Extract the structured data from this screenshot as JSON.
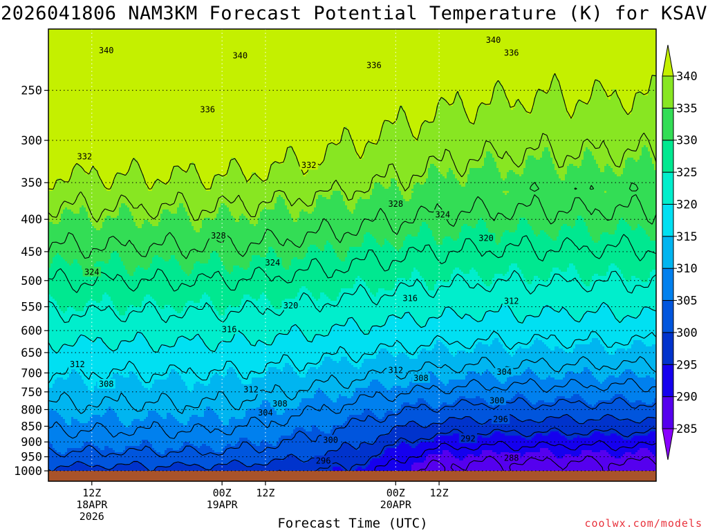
{
  "title": "2026041806 NAM3KM Forecast Potential Temperature (K) for KSAV",
  "credit": "coolwx.com/models",
  "chart_data": {
    "type": "heatmap",
    "title": "2026041806 NAM3KM Forecast Potential Temperature (K) for KSAV",
    "xlabel": "Forecast Time (UTC)",
    "ylabel": "",
    "yaxis": {
      "scale": "log-pressure",
      "inverted": true,
      "ticks": [
        250,
        300,
        350,
        400,
        450,
        500,
        550,
        600,
        650,
        700,
        750,
        800,
        850,
        900,
        950,
        1000
      ],
      "ylim": [
        1000,
        200
      ]
    },
    "xaxis": {
      "xlim_hours": [
        0,
        84
      ],
      "ticks": [
        {
          "hour": 6,
          "lines": [
            "12Z",
            "18APR",
            "2026"
          ]
        },
        {
          "hour": 24,
          "lines": [
            "00Z",
            "19APR"
          ]
        },
        {
          "hour": 30,
          "lines": [
            "12Z"
          ]
        },
        {
          "hour": 48,
          "lines": [
            "00Z",
            "20APR"
          ]
        },
        {
          "hour": 54,
          "lines": [
            "12Z"
          ]
        }
      ]
    },
    "grid": true,
    "colorbar": {
      "location": "right",
      "levels": [
        285,
        290,
        295,
        300,
        305,
        310,
        315,
        320,
        325,
        330,
        335,
        340
      ],
      "colors": [
        "#8800ff",
        "#5500ee",
        "#1500ee",
        "#0033cc",
        "#0055dd",
        "#0080ee",
        "#00b5f0",
        "#00e0f2",
        "#00eecc",
        "#00e890",
        "#33dd55",
        "#88e622",
        "#c4f000"
      ]
    },
    "contour_levels": [
      288,
      292,
      296,
      300,
      304,
      308,
      312,
      316,
      320,
      324,
      328,
      332,
      336,
      340
    ],
    "contour_labels": [
      {
        "value": 340,
        "hour": 8,
        "pressure": 216
      },
      {
        "value": 340,
        "hour": 26.5,
        "pressure": 220
      },
      {
        "value": 340,
        "hour": 61.5,
        "pressure": 208
      },
      {
        "value": 336,
        "hour": 45,
        "pressure": 228
      },
      {
        "value": 336,
        "hour": 64,
        "pressure": 218
      },
      {
        "value": 336,
        "hour": 22,
        "pressure": 268
      },
      {
        "value": 332,
        "hour": 5,
        "pressure": 318
      },
      {
        "value": 332,
        "hour": 36,
        "pressure": 328
      },
      {
        "value": 328,
        "hour": 48,
        "pressure": 378
      },
      {
        "value": 328,
        "hour": 23.5,
        "pressure": 424
      },
      {
        "value": 324,
        "hour": 54.5,
        "pressure": 393
      },
      {
        "value": 324,
        "hour": 6,
        "pressure": 484
      },
      {
        "value": 324,
        "hour": 31,
        "pressure": 468
      },
      {
        "value": 320,
        "hour": 60.5,
        "pressure": 428
      },
      {
        "value": 320,
        "hour": 33.5,
        "pressure": 547
      },
      {
        "value": 316,
        "hour": 25,
        "pressure": 597
      },
      {
        "value": 316,
        "hour": 50,
        "pressure": 533
      },
      {
        "value": 312,
        "hour": 64,
        "pressure": 538
      },
      {
        "value": 312,
        "hour": 4,
        "pressure": 678
      },
      {
        "value": 312,
        "hour": 28,
        "pressure": 743
      },
      {
        "value": 312,
        "hour": 48,
        "pressure": 692
      },
      {
        "value": 308,
        "hour": 8,
        "pressure": 728
      },
      {
        "value": 308,
        "hour": 51.5,
        "pressure": 713
      },
      {
        "value": 308,
        "hour": 32,
        "pressure": 782
      },
      {
        "value": 304,
        "hour": 30,
        "pressure": 808
      },
      {
        "value": 304,
        "hour": 63,
        "pressure": 697
      },
      {
        "value": 300,
        "hour": 39,
        "pressure": 893
      },
      {
        "value": 300,
        "hour": 62,
        "pressure": 773
      },
      {
        "value": 296,
        "hour": 38,
        "pressure": 963
      },
      {
        "value": 296,
        "hour": 62.5,
        "pressure": 828
      },
      {
        "value": 292,
        "hour": 58,
        "pressure": 888
      },
      {
        "value": 288,
        "hour": 64,
        "pressure": 953
      }
    ]
  }
}
